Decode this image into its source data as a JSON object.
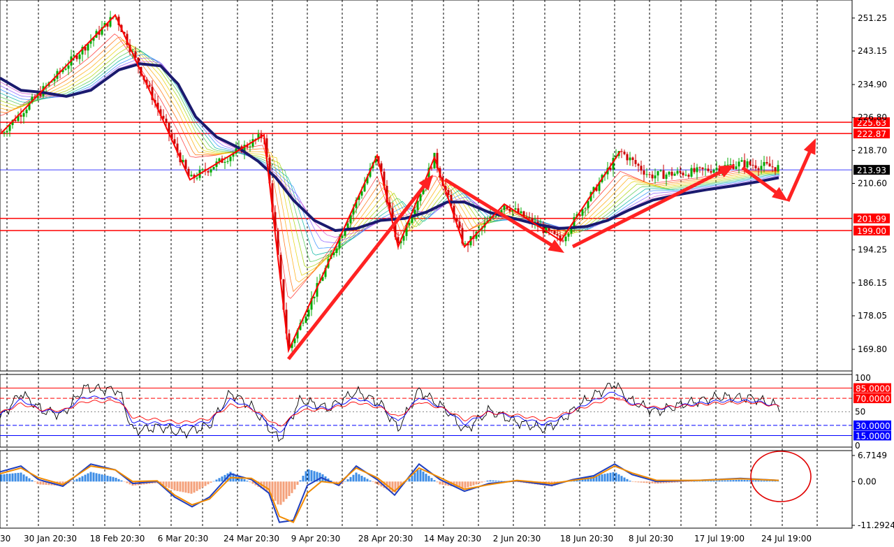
{
  "chart_data": [
    {
      "type": "candlestick",
      "title": "",
      "x_tick_labels": [
        "30",
        "30 Jan 20:30",
        "18 Feb 20:30",
        "6 Mar 20:30",
        "24 Mar 20:30",
        "9 Apr 20:30",
        "28 Apr 20:30",
        "14 May 20:30",
        "2 Jun 20:30",
        "18 Jun 20:30",
        "8 Jul 20:30",
        "17 Jul 19:00",
        "24 Jul 19:00"
      ],
      "y_tick_labels": [
        "251.25",
        "243.15",
        "234.90",
        "226.80",
        "218.70",
        "210.60",
        "194.25",
        "186.15",
        "178.05",
        "169.80"
      ],
      "ylim": [
        165.0,
        255.0
      ],
      "current_price": 213.93,
      "horizontal_levels": [
        {
          "value": 225.63,
          "label": "225.63",
          "color": "#ff0000"
        },
        {
          "value": 222.87,
          "label": "222.87",
          "color": "#ff0000"
        },
        {
          "value": 201.99,
          "label": "201.99",
          "color": "#ff0000"
        },
        {
          "value": 199.0,
          "label": "199.00",
          "color": "#ff0000"
        }
      ],
      "current_price_label": "213.93",
      "moving_average_slow": [
        [
          0,
          236.5
        ],
        [
          30,
          233.5
        ],
        [
          60,
          233.0
        ],
        [
          95,
          232.0
        ],
        [
          130,
          233.5
        ],
        [
          170,
          238.5
        ],
        [
          200,
          240.0
        ],
        [
          230,
          239.5
        ],
        [
          255,
          235.0
        ],
        [
          280,
          227.0
        ],
        [
          310,
          222.0
        ],
        [
          340,
          219.5
        ],
        [
          370,
          216.0
        ],
        [
          395,
          212.0
        ],
        [
          420,
          206.5
        ],
        [
          450,
          201.5
        ],
        [
          480,
          199.0
        ],
        [
          510,
          199.5
        ],
        [
          545,
          201.5
        ],
        [
          580,
          202.0
        ],
        [
          610,
          203.5
        ],
        [
          640,
          206.0
        ],
        [
          665,
          206.0
        ],
        [
          700,
          203.5
        ],
        [
          735,
          202.0
        ],
        [
          770,
          200.5
        ],
        [
          800,
          199.5
        ],
        [
          840,
          200.0
        ],
        [
          870,
          201.5
        ],
        [
          900,
          204.0
        ],
        [
          935,
          206.5
        ],
        [
          970,
          207.8
        ],
        [
          1010,
          209.0
        ],
        [
          1050,
          210.0
        ],
        [
          1085,
          211.0
        ],
        [
          1115,
          212.0
        ]
      ],
      "zigzag": [
        [
          2,
          223.0
        ],
        [
          165,
          252.0
        ],
        [
          272,
          211.5
        ],
        [
          378,
          222.5
        ],
        [
          413,
          169.5
        ],
        [
          540,
          217.5
        ],
        [
          570,
          195.0
        ],
        [
          622,
          217.0
        ],
        [
          665,
          195.0
        ],
        [
          722,
          205.5
        ],
        [
          803,
          196.5
        ],
        [
          888,
          218.5
        ]
      ],
      "arrows": [
        {
          "from": [
            413,
            514
          ],
          "to": [
            620,
            250
          ]
        },
        {
          "from": [
            637,
            257
          ],
          "to": [
            808,
            362
          ]
        },
        {
          "from": [
            820,
            353
          ],
          "to": [
            1052,
            236
          ]
        },
        {
          "from": [
            1063,
            240
          ],
          "to": [
            1128,
            288
          ]
        },
        {
          "from": [
            1128,
            288
          ],
          "to": [
            1168,
            198
          ]
        }
      ]
    },
    {
      "type": "line",
      "title": "",
      "ylim": [
        0,
        100
      ],
      "axis_labels": [
        "100",
        "50",
        "0"
      ],
      "levels": [
        {
          "value": 85.0,
          "label": "85.0000",
          "color": "#ff0000"
        },
        {
          "value": 70.0,
          "label": "70.0000",
          "color": "#ff0000"
        },
        {
          "value": 30.0,
          "label": "30.0000",
          "color": "#0000ff"
        },
        {
          "value": 15.0,
          "label": "15.0000",
          "color": "#0000ff"
        }
      ],
      "series": [
        {
          "color": "#000000",
          "values": [
            [
              0,
              40
            ],
            [
              30,
              78
            ],
            [
              60,
              52
            ],
            [
              90,
              46
            ],
            [
              120,
              85
            ],
            [
              170,
              82
            ],
            [
              190,
              22
            ],
            [
              230,
              28
            ],
            [
              260,
              18
            ],
            [
              300,
              30
            ],
            [
              330,
              78
            ],
            [
              360,
              58
            ],
            [
              400,
              8
            ],
            [
              430,
              68
            ],
            [
              470,
              55
            ],
            [
              510,
              80
            ],
            [
              545,
              62
            ],
            [
              570,
              25
            ],
            [
              600,
              82
            ],
            [
              640,
              52
            ],
            [
              665,
              22
            ],
            [
              700,
              52
            ],
            [
              740,
              35
            ],
            [
              780,
              25
            ],
            [
              800,
              35
            ],
            [
              840,
              68
            ],
            [
              880,
              92
            ],
            [
              900,
              68
            ],
            [
              940,
              50
            ],
            [
              980,
              62
            ],
            [
              1030,
              72
            ],
            [
              1080,
              70
            ],
            [
              1115,
              58
            ]
          ]
        },
        {
          "color": "#0000ff",
          "values": [
            [
              0,
              45
            ],
            [
              30,
              68
            ],
            [
              60,
              52
            ],
            [
              90,
              50
            ],
            [
              120,
              72
            ],
            [
              170,
              70
            ],
            [
              190,
              35
            ],
            [
              230,
              33
            ],
            [
              260,
              28
            ],
            [
              300,
              36
            ],
            [
              330,
              68
            ],
            [
              360,
              56
            ],
            [
              400,
              18
            ],
            [
              430,
              58
            ],
            [
              470,
              55
            ],
            [
              510,
              70
            ],
            [
              545,
              58
            ],
            [
              570,
              35
            ],
            [
              600,
              72
            ],
            [
              640,
              52
            ],
            [
              665,
              32
            ],
            [
              700,
              50
            ],
            [
              740,
              42
            ],
            [
              780,
              32
            ],
            [
              800,
              40
            ],
            [
              840,
              62
            ],
            [
              880,
              80
            ],
            [
              900,
              64
            ],
            [
              940,
              54
            ],
            [
              980,
              60
            ],
            [
              1030,
              66
            ],
            [
              1080,
              66
            ],
            [
              1115,
              58
            ]
          ]
        },
        {
          "color": "#ff0000",
          "values": [
            [
              0,
              48
            ],
            [
              30,
              62
            ],
            [
              60,
              53
            ],
            [
              90,
              52
            ],
            [
              120,
              65
            ],
            [
              170,
              66
            ],
            [
              190,
              42
            ],
            [
              230,
              38
            ],
            [
              260,
              34
            ],
            [
              300,
              40
            ],
            [
              330,
              60
            ],
            [
              360,
              55
            ],
            [
              400,
              28
            ],
            [
              430,
              52
            ],
            [
              470,
              54
            ],
            [
              510,
              64
            ],
            [
              545,
              56
            ],
            [
              570,
              42
            ],
            [
              600,
              65
            ],
            [
              640,
              53
            ],
            [
              665,
              38
            ],
            [
              700,
              49
            ],
            [
              740,
              45
            ],
            [
              780,
              38
            ],
            [
              800,
              44
            ],
            [
              840,
              58
            ],
            [
              880,
              72
            ],
            [
              900,
              62
            ],
            [
              940,
              56
            ],
            [
              980,
              59
            ],
            [
              1030,
              63
            ],
            [
              1080,
              64
            ],
            [
              1115,
              58
            ]
          ]
        }
      ]
    },
    {
      "type": "histogram",
      "title": "",
      "axis_labels": [
        "6.7149",
        "0.00",
        "-11.2924"
      ],
      "ylim": [
        -11.2924,
        6.7149
      ],
      "macd_line": [
        [
          0,
          2.5
        ],
        [
          30,
          4.0
        ],
        [
          55,
          0.5
        ],
        [
          90,
          -1.2
        ],
        [
          130,
          4.5
        ],
        [
          165,
          3.0
        ],
        [
          190,
          -0.5
        ],
        [
          225,
          0.0
        ],
        [
          250,
          -4.0
        ],
        [
          275,
          -6.5
        ],
        [
          300,
          -4.0
        ],
        [
          330,
          2.0
        ],
        [
          360,
          0.5
        ],
        [
          385,
          -3.0
        ],
        [
          400,
          -10.5
        ],
        [
          420,
          -10.0
        ],
        [
          440,
          -1.0
        ],
        [
          460,
          1.0
        ],
        [
          485,
          -1.0
        ],
        [
          510,
          4.0
        ],
        [
          540,
          0.5
        ],
        [
          565,
          -3.5
        ],
        [
          600,
          4.5
        ],
        [
          630,
          0.5
        ],
        [
          665,
          -2.5
        ],
        [
          700,
          -0.5
        ],
        [
          740,
          0.2
        ],
        [
          790,
          -1.0
        ],
        [
          820,
          0.5
        ],
        [
          850,
          1.5
        ],
        [
          880,
          4.5
        ],
        [
          905,
          1.8
        ],
        [
          940,
          0.0
        ],
        [
          1000,
          0.3
        ],
        [
          1060,
          0.8
        ],
        [
          1115,
          0.3
        ]
      ],
      "signal_line": [
        [
          0,
          2.0
        ],
        [
          30,
          3.5
        ],
        [
          55,
          1.0
        ],
        [
          90,
          -0.8
        ],
        [
          130,
          4.0
        ],
        [
          165,
          3.0
        ],
        [
          190,
          0.0
        ],
        [
          225,
          0.2
        ],
        [
          250,
          -3.5
        ],
        [
          275,
          -6.0
        ],
        [
          300,
          -4.5
        ],
        [
          330,
          1.0
        ],
        [
          360,
          0.8
        ],
        [
          385,
          -2.0
        ],
        [
          400,
          -9.0
        ],
        [
          420,
          -10.5
        ],
        [
          440,
          -3.0
        ],
        [
          460,
          0.0
        ],
        [
          485,
          -0.5
        ],
        [
          510,
          3.5
        ],
        [
          540,
          1.0
        ],
        [
          565,
          -2.5
        ],
        [
          600,
          3.5
        ],
        [
          630,
          1.0
        ],
        [
          665,
          -2.0
        ],
        [
          700,
          -0.8
        ],
        [
          740,
          0.3
        ],
        [
          790,
          -0.5
        ],
        [
          820,
          0.3
        ],
        [
          850,
          1.0
        ],
        [
          880,
          4.0
        ],
        [
          905,
          2.2
        ],
        [
          940,
          0.3
        ],
        [
          1000,
          0.3
        ],
        [
          1060,
          0.7
        ],
        [
          1115,
          0.3
        ]
      ],
      "highlight": "circle"
    }
  ],
  "colors": {
    "grid": "#000000",
    "level_line": "#ff0000",
    "current_price_line": "#0000ff",
    "ma_slow": "#1a1a6e",
    "zigzag": "#ff0000",
    "arrow": "#ff2222",
    "bull_candle": "#00aa00",
    "bear_candle": "#cc0000",
    "hist_pos": "#3c8ce6",
    "hist_neg": "#f4a07a",
    "macd_line": "#1f3fbf",
    "signal_line": "#f08a00",
    "highlight_circle": "#e00000"
  }
}
